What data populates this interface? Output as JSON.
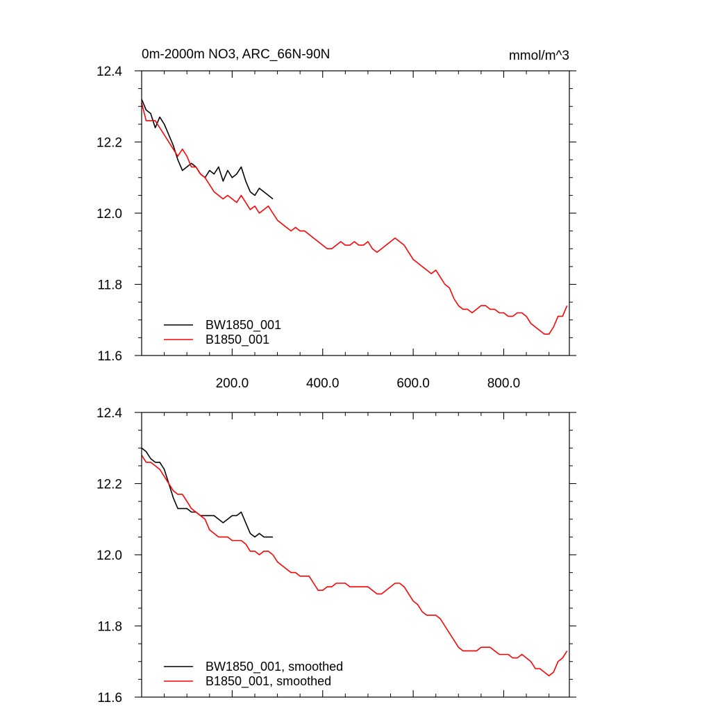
{
  "chart_data": [
    {
      "type": "line",
      "title": "0m-2000m NO3, ARC_66N-90N",
      "units": "mmol/m^3",
      "xlim": [
        0,
        945
      ],
      "ylim": [
        11.6,
        12.4
      ],
      "x_ticks": [
        200,
        400,
        600,
        800
      ],
      "x_tick_labels": [
        "200.0",
        "400.0",
        "600.0",
        "800.0"
      ],
      "y_ticks": [
        11.6,
        11.8,
        12.0,
        12.2,
        12.4
      ],
      "y_tick_labels": [
        "11.6",
        "11.8",
        "12.0",
        "12.2",
        "12.4"
      ],
      "legend_position": "bottom-left",
      "grid": false,
      "series": [
        {
          "name": "BW1850_001",
          "color": "#000000",
          "x": [
            0,
            10,
            20,
            30,
            40,
            50,
            60,
            70,
            80,
            90,
            100,
            110,
            120,
            130,
            140,
            150,
            160,
            170,
            180,
            190,
            200,
            210,
            220,
            230,
            240,
            250,
            260,
            270,
            280,
            290
          ],
          "y": [
            12.32,
            12.29,
            12.28,
            12.24,
            12.27,
            12.25,
            12.22,
            12.19,
            12.15,
            12.12,
            12.13,
            12.14,
            12.13,
            12.11,
            12.1,
            12.12,
            12.11,
            12.13,
            12.09,
            12.12,
            12.1,
            12.11,
            12.13,
            12.09,
            12.06,
            12.05,
            12.07,
            12.06,
            12.05,
            12.04
          ]
        },
        {
          "name": "B1850_001",
          "color": "#ff0000",
          "x": [
            0,
            10,
            20,
            30,
            40,
            50,
            60,
            70,
            80,
            90,
            100,
            110,
            120,
            130,
            140,
            150,
            160,
            170,
            180,
            190,
            200,
            210,
            220,
            230,
            240,
            250,
            260,
            270,
            280,
            290,
            300,
            310,
            320,
            330,
            340,
            350,
            360,
            370,
            380,
            390,
            400,
            410,
            420,
            430,
            440,
            450,
            460,
            470,
            480,
            490,
            500,
            510,
            520,
            530,
            540,
            550,
            560,
            570,
            580,
            590,
            600,
            610,
            620,
            630,
            640,
            650,
            660,
            670,
            680,
            690,
            700,
            710,
            720,
            730,
            740,
            750,
            760,
            770,
            780,
            790,
            800,
            810,
            820,
            830,
            840,
            850,
            860,
            870,
            880,
            890,
            900,
            910,
            920,
            930,
            940
          ],
          "y": [
            12.31,
            12.26,
            12.26,
            12.26,
            12.24,
            12.22,
            12.2,
            12.18,
            12.16,
            12.18,
            12.16,
            12.13,
            12.13,
            12.11,
            12.1,
            12.08,
            12.06,
            12.05,
            12.04,
            12.05,
            12.04,
            12.03,
            12.05,
            12.03,
            12.01,
            12.02,
            12.0,
            12.01,
            12.02,
            12.0,
            11.98,
            11.97,
            11.96,
            11.95,
            11.96,
            11.95,
            11.95,
            11.94,
            11.93,
            11.92,
            11.91,
            11.9,
            11.9,
            11.91,
            11.92,
            11.91,
            11.91,
            11.92,
            11.91,
            11.91,
            11.92,
            11.9,
            11.89,
            11.9,
            11.91,
            11.92,
            11.93,
            11.92,
            11.91,
            11.89,
            11.87,
            11.86,
            11.85,
            11.84,
            11.83,
            11.84,
            11.82,
            11.8,
            11.79,
            11.76,
            11.74,
            11.73,
            11.73,
            11.72,
            11.73,
            11.74,
            11.74,
            11.73,
            11.73,
            11.72,
            11.72,
            11.71,
            11.71,
            11.72,
            11.72,
            11.71,
            11.69,
            11.68,
            11.67,
            11.66,
            11.66,
            11.68,
            11.71,
            11.71,
            11.74
          ]
        }
      ]
    },
    {
      "type": "line",
      "title": "",
      "xlim": [
        0,
        945
      ],
      "ylim": [
        11.6,
        12.4
      ],
      "x_ticks": [
        200,
        400,
        600,
        800
      ],
      "x_tick_labels": [],
      "y_ticks": [
        11.6,
        11.8,
        12.0,
        12.2,
        12.4
      ],
      "y_tick_labels": [
        "11.6",
        "11.8",
        "12.0",
        "12.2",
        "12.4"
      ],
      "legend_position": "bottom-left",
      "grid": false,
      "series": [
        {
          "name": "BW1850_001, smoothed",
          "color": "#000000",
          "x": [
            0,
            10,
            20,
            30,
            40,
            50,
            60,
            70,
            80,
            90,
            100,
            110,
            120,
            130,
            140,
            150,
            160,
            170,
            180,
            190,
            200,
            210,
            220,
            230,
            240,
            250,
            260,
            270,
            280,
            290
          ],
          "y": [
            12.3,
            12.29,
            12.27,
            12.26,
            12.26,
            12.24,
            12.2,
            12.16,
            12.13,
            12.13,
            12.13,
            12.12,
            12.12,
            12.11,
            12.11,
            12.11,
            12.11,
            12.1,
            12.09,
            12.1,
            12.11,
            12.11,
            12.12,
            12.09,
            12.06,
            12.05,
            12.06,
            12.05,
            12.05,
            12.05
          ]
        },
        {
          "name": "B1850_001, smoothed",
          "color": "#ff0000",
          "x": [
            0,
            10,
            20,
            30,
            40,
            50,
            60,
            70,
            80,
            90,
            100,
            110,
            120,
            130,
            140,
            150,
            160,
            170,
            180,
            190,
            200,
            210,
            220,
            230,
            240,
            250,
            260,
            270,
            280,
            290,
            300,
            310,
            320,
            330,
            340,
            350,
            360,
            370,
            380,
            390,
            400,
            410,
            420,
            430,
            440,
            450,
            460,
            470,
            480,
            490,
            500,
            510,
            520,
            530,
            540,
            550,
            560,
            570,
            580,
            590,
            600,
            610,
            620,
            630,
            640,
            650,
            660,
            670,
            680,
            690,
            700,
            710,
            720,
            730,
            740,
            750,
            760,
            770,
            780,
            790,
            800,
            810,
            820,
            830,
            840,
            850,
            860,
            870,
            880,
            890,
            900,
            910,
            920,
            930,
            940
          ],
          "y": [
            12.28,
            12.26,
            12.26,
            12.25,
            12.24,
            12.22,
            12.2,
            12.18,
            12.17,
            12.17,
            12.15,
            12.13,
            12.12,
            12.11,
            12.1,
            12.07,
            12.06,
            12.05,
            12.05,
            12.05,
            12.04,
            12.04,
            12.04,
            12.03,
            12.01,
            12.01,
            12.0,
            12.01,
            12.01,
            12.0,
            11.98,
            11.97,
            11.96,
            11.95,
            11.95,
            11.94,
            11.94,
            11.94,
            11.92,
            11.9,
            11.9,
            11.91,
            11.91,
            11.92,
            11.92,
            11.92,
            11.91,
            11.91,
            11.91,
            11.91,
            11.91,
            11.9,
            11.89,
            11.89,
            11.9,
            11.91,
            11.92,
            11.92,
            11.91,
            11.89,
            11.87,
            11.86,
            11.84,
            11.83,
            11.83,
            11.83,
            11.82,
            11.8,
            11.78,
            11.76,
            11.74,
            11.73,
            11.73,
            11.73,
            11.73,
            11.74,
            11.74,
            11.74,
            11.73,
            11.72,
            11.72,
            11.72,
            11.71,
            11.71,
            11.72,
            11.71,
            11.7,
            11.68,
            11.68,
            11.67,
            11.66,
            11.67,
            11.7,
            11.71,
            11.73
          ]
        }
      ]
    }
  ]
}
